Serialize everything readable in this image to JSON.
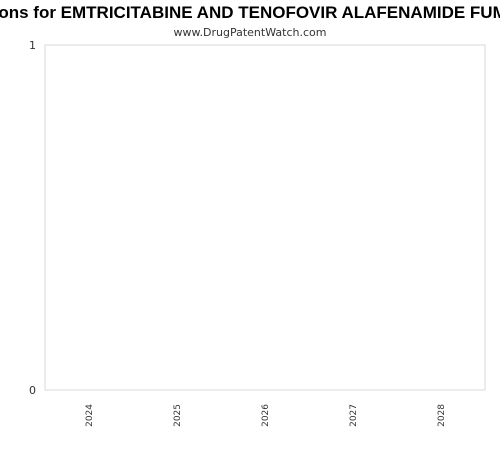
{
  "chart_data": {
    "type": "bar",
    "title": "Expirations for EMTRICITABINE AND TENOFOVIR ALAFENAMIDE FUMARATE",
    "subtitle": "www.DrugPatentWatch.com",
    "categories": [
      "2024",
      "2025",
      "2026",
      "2027",
      "2028"
    ],
    "values": [
      0,
      0,
      0,
      0,
      0
    ],
    "ylim": [
      0,
      1
    ],
    "yticks": [
      "0",
      "1"
    ],
    "xlabel": "",
    "ylabel": "",
    "grid": false,
    "legend": "none"
  },
  "colors": {
    "plot_border": "#d9d9d9",
    "title": "#000000",
    "text": "#333333"
  }
}
